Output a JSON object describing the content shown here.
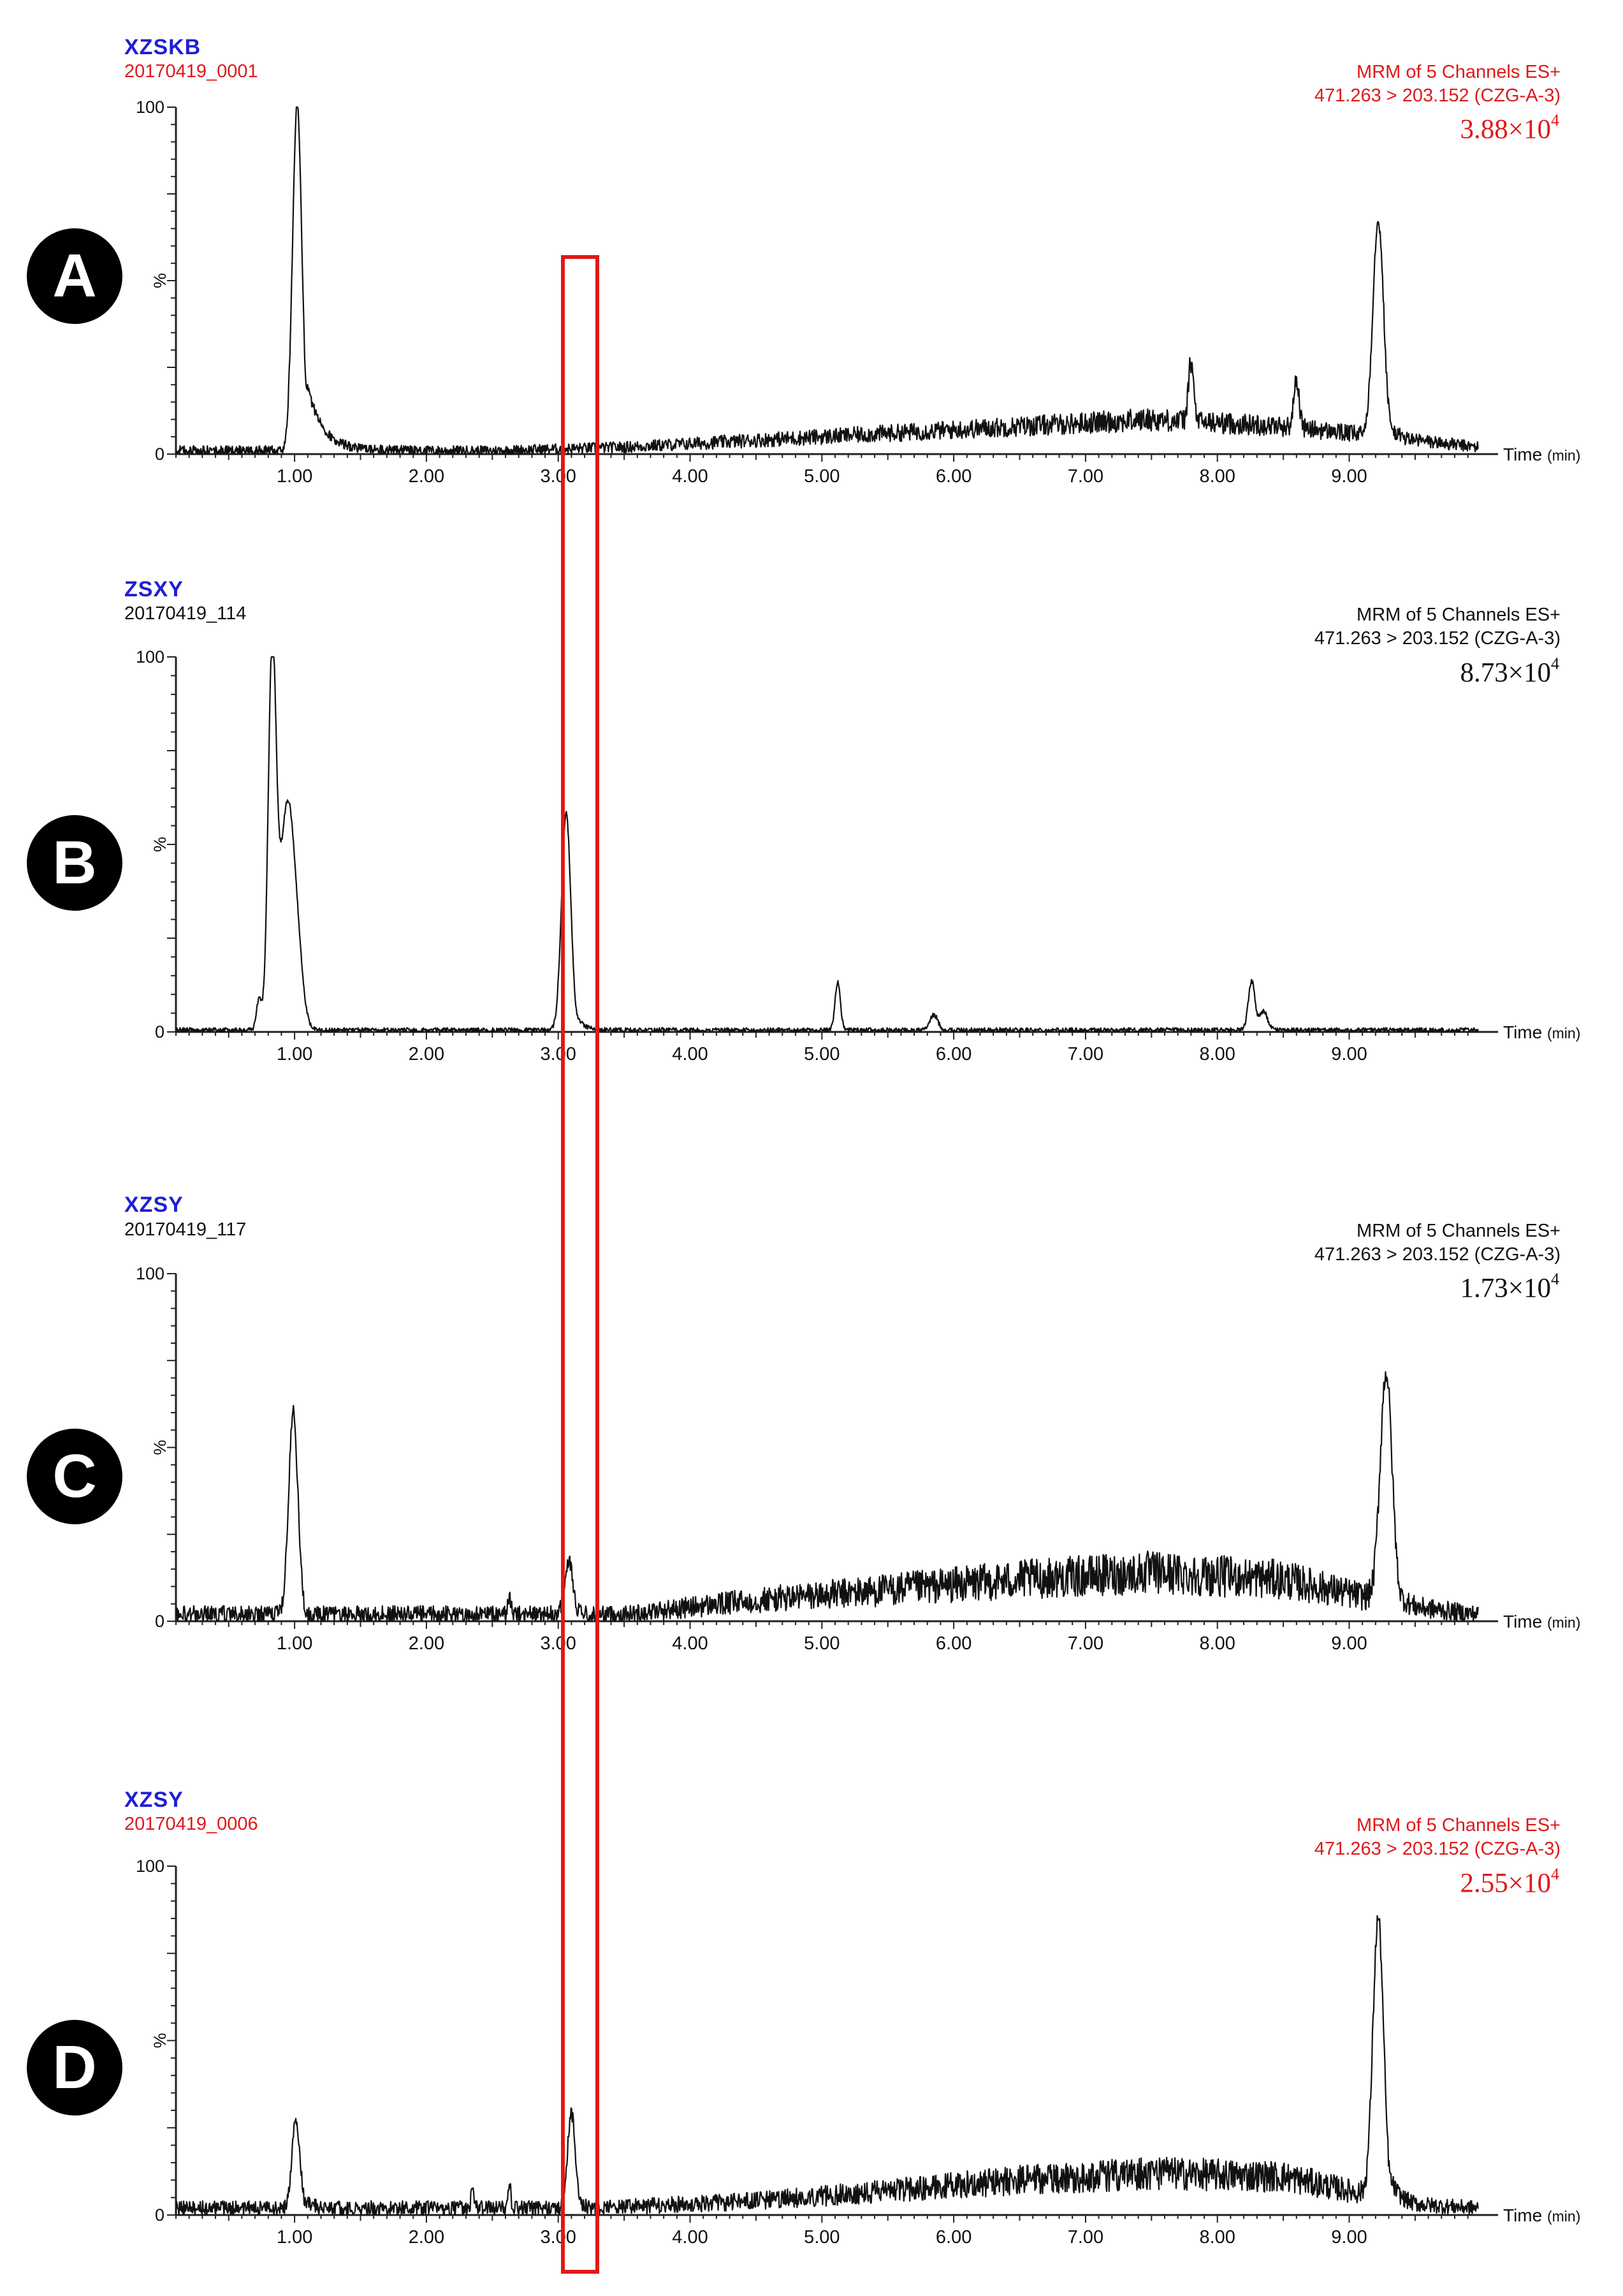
{
  "colors": {
    "blue_label": "#1f1fd6",
    "red_text": "#e01818",
    "black_text": "#111111",
    "trace": "#111111",
    "highlight": "#e01818"
  },
  "axis": {
    "x_unit_label": "Time",
    "x_unit_suffix": "(min)",
    "y_label": "%",
    "y_ticks": [
      "0",
      "100"
    ],
    "x_ticks": [
      "1.00",
      "2.00",
      "3.00",
      "4.00",
      "5.00",
      "6.00",
      "7.00",
      "8.00",
      "9.00"
    ]
  },
  "highlight_box": {
    "x_range_min": [
      2.94,
      3.27
    ],
    "color": "#e01818"
  },
  "chart_data": [
    {
      "type": "line",
      "panel": "A",
      "sample": "XZSKB",
      "run": "20170419_0001",
      "text_color": "#e01818",
      "channel": "MRM of 5 Channels ES+",
      "transition": "471.263 > 203.152 (CZG-A-3)",
      "intensity_mantissa": "3.88×10",
      "intensity_exponent": "4",
      "xlabel": "Time (min)",
      "ylabel": "%",
      "xlim": [
        0,
        10
      ],
      "ylim": [
        0,
        100
      ],
      "baseline": [
        [
          0.1,
          1
        ],
        [
          2.5,
          1
        ],
        [
          3.5,
          2
        ],
        [
          4.5,
          4
        ],
        [
          5.5,
          6
        ],
        [
          6.5,
          8
        ],
        [
          7.5,
          10
        ],
        [
          8.5,
          8
        ],
        [
          9.5,
          4
        ],
        [
          9.98,
          2
        ]
      ],
      "noise": 3,
      "peaks": [
        {
          "rt": 1.02,
          "height": 100,
          "width": 0.035,
          "tail": 0.12
        },
        {
          "rt": 7.8,
          "height": 17,
          "width": 0.02
        },
        {
          "rt": 8.6,
          "height": 14,
          "width": 0.02
        },
        {
          "rt": 9.22,
          "height": 63,
          "width": 0.04,
          "tail": 0.05
        }
      ]
    },
    {
      "type": "line",
      "panel": "B",
      "sample": "ZSXY",
      "run": "20170419_114",
      "text_color": "#111111",
      "channel": "MRM of 5 Channels ES+",
      "transition": "471.263 > 203.152 (CZG-A-3)",
      "intensity_mantissa": "8.73×10",
      "intensity_exponent": "4",
      "xlabel": "Time (min)",
      "ylabel": "%",
      "xlim": [
        0,
        10
      ],
      "ylim": [
        0,
        100
      ],
      "baseline": [
        [
          0.1,
          0.5
        ],
        [
          9.98,
          0.5
        ]
      ],
      "noise": 1.4,
      "peaks": [
        {
          "rt": 0.73,
          "height": 8,
          "width": 0.02
        },
        {
          "rt": 0.83,
          "height": 100,
          "width": 0.03
        },
        {
          "rt": 0.93,
          "height": 48,
          "width": 0.05
        },
        {
          "rt": 1.0,
          "height": 28,
          "width": 0.05
        },
        {
          "rt": 3.06,
          "height": 58,
          "width": 0.035,
          "tail": 0.05
        },
        {
          "rt": 5.12,
          "height": 13,
          "width": 0.02
        },
        {
          "rt": 5.85,
          "height": 4,
          "width": 0.03
        },
        {
          "rt": 8.26,
          "height": 13,
          "width": 0.025
        },
        {
          "rt": 8.35,
          "height": 5,
          "width": 0.03
        }
      ]
    },
    {
      "type": "line",
      "panel": "C",
      "sample": "XZSY",
      "run": "20170419_117",
      "text_color": "#111111",
      "channel": "MRM of 5 Channels ES+",
      "transition": "471.263 > 203.152 (CZG-A-3)",
      "intensity_mantissa": "1.73×10",
      "intensity_exponent": "4",
      "xlabel": "Time (min)",
      "ylabel": "%",
      "xlim": [
        0,
        10
      ],
      "ylim": [
        0,
        100
      ],
      "baseline": [
        [
          0.1,
          2
        ],
        [
          3.5,
          2
        ],
        [
          4.5,
          6
        ],
        [
          5.5,
          9
        ],
        [
          6.5,
          12
        ],
        [
          7.5,
          14
        ],
        [
          8.5,
          12
        ],
        [
          9.5,
          4
        ],
        [
          9.98,
          2
        ]
      ],
      "noise": 4.5,
      "peaks": [
        {
          "rt": 0.99,
          "height": 58,
          "width": 0.035,
          "tail": 0.03
        },
        {
          "rt": 2.63,
          "height": 6,
          "width": 0.01
        },
        {
          "rt": 3.08,
          "height": 16,
          "width": 0.03
        },
        {
          "rt": 9.28,
          "height": 66,
          "width": 0.045,
          "tail": 0.05
        }
      ]
    },
    {
      "type": "line",
      "panel": "D",
      "sample": "XZSY",
      "run": "20170419_0006",
      "text_color": "#e01818",
      "channel": "MRM of 5 Channels ES+",
      "transition": "471.263 > 203.152 (CZG-A-3)",
      "intensity_mantissa": "2.55×10",
      "intensity_exponent": "4",
      "xlabel": "Time (min)",
      "ylabel": "%",
      "xlim": [
        0,
        10
      ],
      "ylim": [
        0,
        100
      ],
      "baseline": [
        [
          0.1,
          2
        ],
        [
          3.3,
          2
        ],
        [
          4.5,
          4
        ],
        [
          5.5,
          7
        ],
        [
          6.5,
          10
        ],
        [
          7.5,
          12
        ],
        [
          8.5,
          11
        ],
        [
          9.5,
          3
        ],
        [
          9.98,
          2
        ]
      ],
      "noise": 3.8,
      "peaks": [
        {
          "rt": 1.01,
          "height": 26,
          "width": 0.03,
          "tail": 0.05
        },
        {
          "rt": 2.35,
          "height": 7,
          "width": 0.01
        },
        {
          "rt": 2.63,
          "height": 8,
          "width": 0.01
        },
        {
          "rt": 3.1,
          "height": 27,
          "width": 0.03,
          "tail": 0.04
        },
        {
          "rt": 9.22,
          "height": 80,
          "width": 0.04,
          "tail": 0.06
        }
      ]
    }
  ]
}
